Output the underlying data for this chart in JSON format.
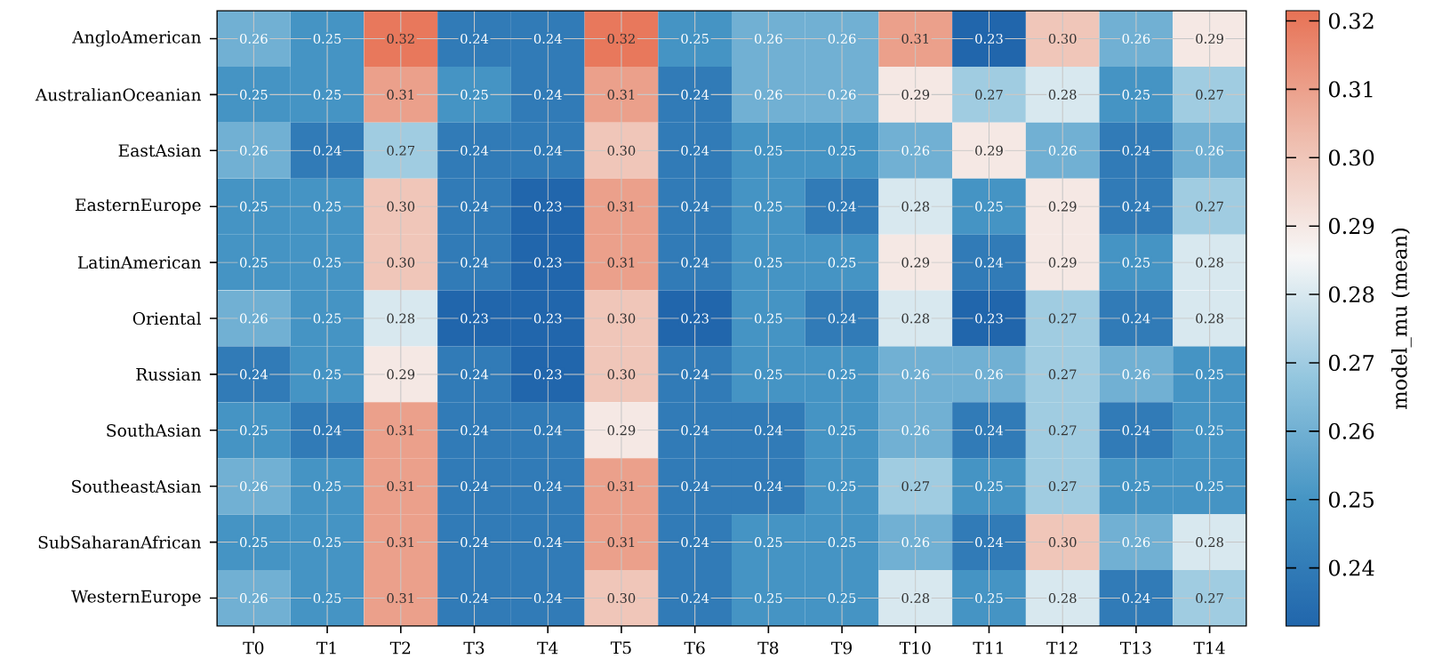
{
  "chart_data": {
    "type": "heatmap",
    "categories": [
      "T0",
      "T1",
      "T2",
      "T3",
      "T4",
      "T5",
      "T6",
      "T8",
      "T9",
      "T10",
      "T11",
      "T12",
      "T13",
      "T14"
    ],
    "y_categories": [
      "AngloAmerican",
      "AustralianOceanian",
      "EastAsian",
      "EasternEurope",
      "LatinAmerican",
      "Oriental",
      "Russian",
      "SouthAsian",
      "SoutheastAsian",
      "SubSaharanAfrican",
      "WesternEurope"
    ],
    "cells": [
      [
        0.26,
        0.25,
        0.32,
        0.24,
        0.24,
        0.32,
        0.25,
        0.26,
        0.26,
        0.31,
        0.23,
        0.3,
        0.26,
        0.29
      ],
      [
        0.25,
        0.25,
        0.31,
        0.25,
        0.24,
        0.31,
        0.24,
        0.26,
        0.26,
        0.29,
        0.27,
        0.28,
        0.25,
        0.27
      ],
      [
        0.26,
        0.24,
        0.27,
        0.24,
        0.24,
        0.3,
        0.24,
        0.25,
        0.25,
        0.26,
        0.29,
        0.26,
        0.24,
        0.26
      ],
      [
        0.25,
        0.25,
        0.3,
        0.24,
        0.23,
        0.31,
        0.24,
        0.25,
        0.24,
        0.28,
        0.25,
        0.29,
        0.24,
        0.27
      ],
      [
        0.25,
        0.25,
        0.3,
        0.24,
        0.23,
        0.31,
        0.24,
        0.25,
        0.25,
        0.29,
        0.24,
        0.29,
        0.25,
        0.28
      ],
      [
        0.26,
        0.25,
        0.28,
        0.23,
        0.23,
        0.3,
        0.23,
        0.25,
        0.24,
        0.28,
        0.23,
        0.27,
        0.24,
        0.28
      ],
      [
        0.24,
        0.25,
        0.29,
        0.24,
        0.23,
        0.3,
        0.24,
        0.25,
        0.25,
        0.26,
        0.26,
        0.27,
        0.26,
        0.25
      ],
      [
        0.25,
        0.24,
        0.31,
        0.24,
        0.24,
        0.29,
        0.24,
        0.24,
        0.25,
        0.26,
        0.24,
        0.27,
        0.24,
        0.25
      ],
      [
        0.26,
        0.25,
        0.31,
        0.24,
        0.24,
        0.31,
        0.24,
        0.24,
        0.25,
        0.27,
        0.25,
        0.27,
        0.25,
        0.25
      ],
      [
        0.25,
        0.25,
        0.31,
        0.24,
        0.24,
        0.31,
        0.24,
        0.25,
        0.25,
        0.26,
        0.24,
        0.3,
        0.26,
        0.28
      ],
      [
        0.26,
        0.25,
        0.31,
        0.24,
        0.24,
        0.3,
        0.24,
        0.25,
        0.25,
        0.28,
        0.25,
        0.28,
        0.24,
        0.27
      ]
    ],
    "cell_labels": [
      [
        "0.26",
        "0.25",
        "0.32",
        "0.24",
        "0.24",
        "0.32",
        "0.25",
        "0.26",
        "0.26",
        "0.31",
        "0.23",
        "0.30",
        "0.26",
        "0.29"
      ],
      [
        "0.25",
        "0.25",
        "0.31",
        "0.25",
        "0.24",
        "0.31",
        "0.24",
        "0.26",
        "0.26",
        "0.29",
        "0.27",
        "0.28",
        "0.25",
        "0.27"
      ],
      [
        "0.26",
        "0.24",
        "0.27",
        "0.24",
        "0.24",
        "0.30",
        "0.24",
        "0.25",
        "0.25",
        "0.26",
        "0.29",
        "0.26",
        "0.24",
        "0.26"
      ],
      [
        "0.25",
        "0.25",
        "0.30",
        "0.24",
        "0.23",
        "0.31",
        "0.24",
        "0.25",
        "0.24",
        "0.28",
        "0.25",
        "0.29",
        "0.24",
        "0.27"
      ],
      [
        "0.25",
        "0.25",
        "0.30",
        "0.24",
        "0.23",
        "0.31",
        "0.24",
        "0.25",
        "0.25",
        "0.29",
        "0.24",
        "0.29",
        "0.25",
        "0.28"
      ],
      [
        "0.26",
        "0.25",
        "0.28",
        "0.23",
        "0.23",
        "0.30",
        "0.23",
        "0.25",
        "0.24",
        "0.28",
        "0.23",
        "0.27",
        "0.24",
        "0.28"
      ],
      [
        "0.24",
        "0.25",
        "0.29",
        "0.24",
        "0.23",
        "0.30",
        "0.24",
        "0.25",
        "0.25",
        "0.26",
        "0.26",
        "0.27",
        "0.26",
        "0.25"
      ],
      [
        "0.25",
        "0.24",
        "0.31",
        "0.24",
        "0.24",
        "0.29",
        "0.24",
        "0.24",
        "0.25",
        "0.26",
        "0.24",
        "0.27",
        "0.24",
        "0.25"
      ],
      [
        "0.26",
        "0.25",
        "0.31",
        "0.24",
        "0.24",
        "0.31",
        "0.24",
        "0.24",
        "0.25",
        "0.27",
        "0.25",
        "0.27",
        "0.25",
        "0.25"
      ],
      [
        "0.25",
        "0.25",
        "0.31",
        "0.24",
        "0.24",
        "0.31",
        "0.24",
        "0.25",
        "0.25",
        "0.26",
        "0.24",
        "0.30",
        "0.26",
        "0.28"
      ],
      [
        "0.26",
        "0.25",
        "0.31",
        "0.24",
        "0.24",
        "0.30",
        "0.24",
        "0.25",
        "0.25",
        "0.28",
        "0.25",
        "0.28",
        "0.24",
        "0.27"
      ]
    ],
    "clim": [
      0.2315,
      0.3215
    ],
    "cticks": [
      0.24,
      0.25,
      0.26,
      0.27,
      0.28,
      0.29,
      {
        "value": 0.3,
        "label": "0.30"
      },
      0.31,
      0.32
    ],
    "clabel": "model_mu (mean)",
    "grid": true
  }
}
